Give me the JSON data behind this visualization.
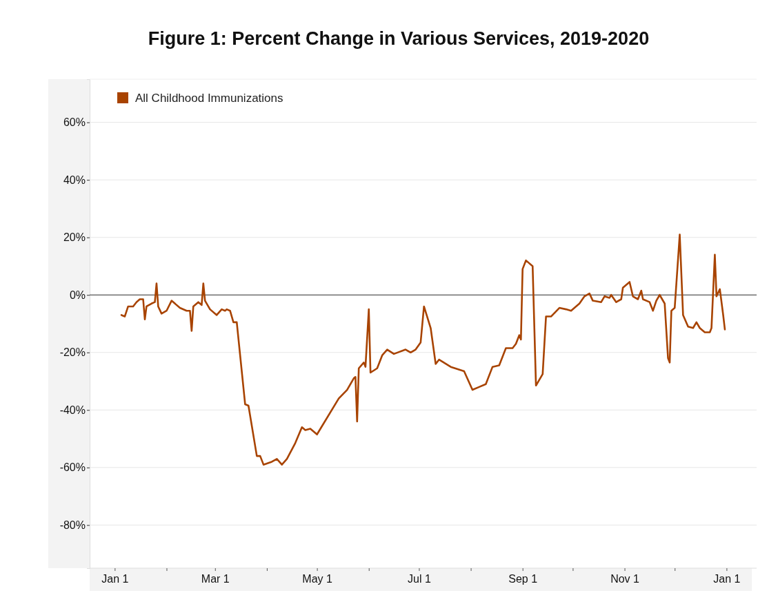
{
  "chart_data": {
    "type": "line",
    "title": "Figure 1: Percent Change in Various Services, 2019-2020",
    "x": [
      "2020-01-05",
      "2020-01-07",
      "2020-01-09",
      "2020-01-12",
      "2020-01-14",
      "2020-01-16",
      "2020-01-18",
      "2020-01-19",
      "2020-01-20",
      "2020-01-23",
      "2020-01-25",
      "2020-01-26",
      "2020-01-27",
      "2020-01-29",
      "2020-02-01",
      "2020-02-04",
      "2020-02-09",
      "2020-02-13",
      "2020-02-15",
      "2020-02-16",
      "2020-02-17",
      "2020-02-20",
      "2020-02-22",
      "2020-02-23",
      "2020-02-24",
      "2020-02-27",
      "2020-03-02",
      "2020-03-05",
      "2020-03-07",
      "2020-03-08",
      "2020-03-10",
      "2020-03-12",
      "2020-03-14",
      "2020-03-19",
      "2020-03-21",
      "2020-03-26",
      "2020-03-28",
      "2020-03-30",
      "2020-04-04",
      "2020-04-07",
      "2020-04-10",
      "2020-04-13",
      "2020-04-18",
      "2020-04-22",
      "2020-04-24",
      "2020-04-27",
      "2020-05-01",
      "2020-05-14",
      "2020-05-19",
      "2020-05-23",
      "2020-05-24",
      "2020-05-25",
      "2020-05-26",
      "2020-05-29",
      "2020-05-30",
      "2020-06-01",
      "2020-06-02",
      "2020-06-06",
      "2020-06-09",
      "2020-06-12",
      "2020-06-16",
      "2020-06-23",
      "2020-06-26",
      "2020-06-29",
      "2020-07-02",
      "2020-07-04",
      "2020-07-08",
      "2020-07-11",
      "2020-07-13",
      "2020-07-20",
      "2020-07-28",
      "2020-08-02",
      "2020-08-06",
      "2020-08-10",
      "2020-08-14",
      "2020-08-18",
      "2020-08-22",
      "2020-08-26",
      "2020-08-28",
      "2020-08-30",
      "2020-08-31",
      "2020-09-01",
      "2020-09-03",
      "2020-09-07",
      "2020-09-09",
      "2020-09-13",
      "2020-09-15",
      "2020-09-18",
      "2020-09-23",
      "2020-09-27",
      "2020-09-30",
      "2020-10-02",
      "2020-10-05",
      "2020-10-08",
      "2020-10-11",
      "2020-10-13",
      "2020-10-18",
      "2020-10-20",
      "2020-10-23",
      "2020-10-24",
      "2020-10-27",
      "2020-10-30",
      "2020-10-31",
      "2020-11-04",
      "2020-11-06",
      "2020-11-09",
      "2020-11-11",
      "2020-11-12",
      "2020-11-16",
      "2020-11-18",
      "2020-11-20",
      "2020-11-22",
      "2020-11-25",
      "2020-11-27",
      "2020-11-28",
      "2020-11-29",
      "2020-12-01",
      "2020-12-04",
      "2020-12-06",
      "2020-12-09",
      "2020-12-12",
      "2020-12-14",
      "2020-12-16",
      "2020-12-19",
      "2020-12-22",
      "2020-12-23",
      "2020-12-25",
      "2020-12-26",
      "2020-12-28",
      "2020-12-30",
      "2020-12-31"
    ],
    "series": [
      {
        "name": "All Childhood Immunizations",
        "color": "#a84300",
        "values": [
          -7,
          -7.5,
          -4,
          -4,
          -2.5,
          -1.5,
          -1.5,
          -8.5,
          -4,
          -3,
          -2.5,
          4,
          -4,
          -6.5,
          -5.5,
          -2,
          -4.5,
          -5.5,
          -5.5,
          -12.5,
          -4,
          -2.5,
          -3.5,
          4,
          -2,
          -5,
          -7,
          -5,
          -5.5,
          -5,
          -5.5,
          -9.5,
          -9.5,
          -38,
          -38.5,
          -56,
          -56,
          -59,
          -58,
          -57,
          -59,
          -57,
          -51.5,
          -46,
          -47,
          -46.5,
          -48.5,
          -36,
          -33,
          -29,
          -28.5,
          -44,
          -25.5,
          -23.5,
          -25,
          -5,
          -27,
          -25.5,
          -21,
          -19,
          -20.5,
          -19,
          -20,
          -19,
          -16.5,
          -4,
          -11.5,
          -24,
          -22.5,
          -25,
          -26.5,
          -33,
          -32,
          -31,
          -25,
          -24.5,
          -18.5,
          -18.5,
          -17,
          -14,
          -15.5,
          9,
          12,
          10,
          -31.5,
          -27.5,
          -7.5,
          -7.5,
          -4.5,
          -5,
          -5.5,
          -4.5,
          -3,
          -0.5,
          0.5,
          -2,
          -2.5,
          -0.5,
          -1,
          0,
          -2.5,
          -1.5,
          2.5,
          4.5,
          -0.5,
          -1.5,
          1.5,
          -1.5,
          -2.5,
          -5.5,
          -2,
          0,
          -3,
          -22,
          -23.5,
          -5.5,
          -4.5,
          21,
          -7,
          -11,
          -11.5,
          -9.5,
          -11.5,
          -13,
          -13,
          -11.5,
          14,
          -0.5,
          2,
          -7,
          -12
        ]
      }
    ],
    "xlim": [
      "2019-12-17",
      "2021-01-19"
    ],
    "xticks": [
      {
        "value": "2020-01-01",
        "label": "Jan 1"
      },
      {
        "value": "2020-02-01",
        "label": null
      },
      {
        "value": "2020-03-01",
        "label": "Mar 1"
      },
      {
        "value": "2020-04-01",
        "label": null
      },
      {
        "value": "2020-05-01",
        "label": "May 1"
      },
      {
        "value": "2020-06-01",
        "label": null
      },
      {
        "value": "2020-07-01",
        "label": "Jul 1"
      },
      {
        "value": "2020-08-01",
        "label": null
      },
      {
        "value": "2020-09-01",
        "label": "Sep 1"
      },
      {
        "value": "2020-10-01",
        "label": null
      },
      {
        "value": "2020-11-01",
        "label": "Nov 1"
      },
      {
        "value": "2020-12-01",
        "label": null
      },
      {
        "value": "2021-01-01",
        "label": "Jan 1"
      }
    ],
    "ylim": [
      -95,
      75
    ],
    "yticks": [
      {
        "value": -80,
        "label": "-80%"
      },
      {
        "value": -60,
        "label": "-60%"
      },
      {
        "value": -40,
        "label": "-40%"
      },
      {
        "value": -20,
        "label": "-20%"
      },
      {
        "value": 0,
        "label": "0%"
      },
      {
        "value": 20,
        "label": "20%"
      },
      {
        "value": 40,
        "label": "40%"
      },
      {
        "value": 60,
        "label": "60%"
      }
    ],
    "ref_lines": [
      {
        "axis": "y",
        "value": 0,
        "color": "#333333"
      }
    ],
    "grid": "y",
    "legend": "top left",
    "marker": "none",
    "line_style": "solid"
  }
}
